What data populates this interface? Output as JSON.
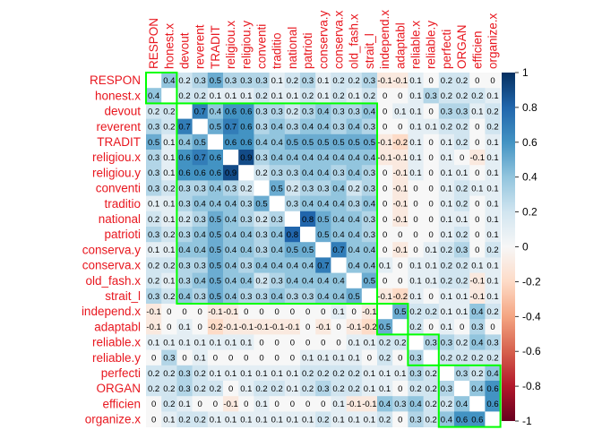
{
  "chart_data": {
    "type": "heatmap",
    "title": "",
    "variables": [
      "RESPON",
      "honest.x",
      "devout",
      "reverent",
      "TRADIT",
      "religiou.x",
      "religiou.y",
      "conventi",
      "traditio",
      "national",
      "patrioti",
      "conserva.y",
      "conserva.x",
      "old_fash.x",
      "strait_l",
      "independ.x",
      "adaptabl",
      "reliable.x",
      "reliable.y",
      "perfecti",
      "ORGAN",
      "efficien",
      "organize.x"
    ],
    "matrix": [
      [
        1,
        0.4,
        0.2,
        0.3,
        0.5,
        0.3,
        0.3,
        0.3,
        0.1,
        0.2,
        0.3,
        0.1,
        0.2,
        0.2,
        0.3,
        -0.1,
        -0.1,
        0.1,
        0,
        0.2,
        0.2,
        0,
        0
      ],
      [
        0.4,
        1,
        0.2,
        0.2,
        0.1,
        0.1,
        0.1,
        0.2,
        0.1,
        0.1,
        0.2,
        0.1,
        0.2,
        0.1,
        0.2,
        0,
        0,
        0.1,
        0.3,
        0.2,
        0.2,
        0.2,
        0.1
      ],
      [
        0.2,
        0.2,
        1,
        0.7,
        0.4,
        0.6,
        0.6,
        0.3,
        0.3,
        0.2,
        0.3,
        0.4,
        0.3,
        0.3,
        0.4,
        0,
        0.1,
        0.1,
        0,
        0.3,
        0.3,
        0.1,
        0.2
      ],
      [
        0.3,
        0.2,
        0.7,
        1,
        0.5,
        0.7,
        0.6,
        0.3,
        0.4,
        0.3,
        0.4,
        0.4,
        0.3,
        0.4,
        0.3,
        0,
        0,
        0.1,
        0.1,
        0.2,
        0.2,
        0,
        0.2
      ],
      [
        0.5,
        0.1,
        0.4,
        0.5,
        1,
        0.6,
        0.6,
        0.4,
        0.4,
        0.5,
        0.5,
        0.5,
        0.5,
        0.5,
        0.5,
        -0.1,
        -0.2,
        0.1,
        0,
        0.1,
        0.2,
        0,
        0.1
      ],
      [
        0.3,
        0.1,
        0.6,
        0.7,
        0.6,
        1,
        0.9,
        0.3,
        0.4,
        0.4,
        0.4,
        0.4,
        0.4,
        0.4,
        0.4,
        -0.1,
        -0.1,
        0.1,
        0,
        0.1,
        0,
        -0.1,
        0.1
      ],
      [
        0.3,
        0.1,
        0.6,
        0.6,
        0.6,
        0.9,
        1,
        0.2,
        0.3,
        0.3,
        0.4,
        0.4,
        0.3,
        0.4,
        0.3,
        0,
        -0.1,
        0.1,
        0,
        0.1,
        0.1,
        0,
        0.1
      ],
      [
        0.3,
        0.2,
        0.3,
        0.3,
        0.4,
        0.3,
        0.2,
        1,
        0.5,
        0.2,
        0.3,
        0.3,
        0.4,
        0.2,
        0.3,
        0,
        -0.1,
        0,
        0,
        0.1,
        0.2,
        0.1,
        0.1
      ],
      [
        0.1,
        0.1,
        0.3,
        0.4,
        0.4,
        0.4,
        0.3,
        0.5,
        1,
        0.3,
        0.4,
        0.4,
        0.4,
        0.3,
        0.4,
        0,
        -0.1,
        0,
        0,
        0.1,
        0.2,
        0,
        0.1
      ],
      [
        0.2,
        0.1,
        0.2,
        0.3,
        0.5,
        0.4,
        0.3,
        0.2,
        0.3,
        1,
        0.8,
        0.5,
        0.4,
        0.4,
        0.3,
        0,
        -0.1,
        0,
        0,
        0.1,
        0.1,
        0,
        0.1
      ],
      [
        0.3,
        0.2,
        0.3,
        0.4,
        0.5,
        0.4,
        0.4,
        0.3,
        0.4,
        0.8,
        1,
        0.5,
        0.4,
        0.4,
        0.3,
        0,
        0,
        0,
        0,
        0.1,
        0.2,
        0,
        0.1
      ],
      [
        0.1,
        0.1,
        0.4,
        0.4,
        0.5,
        0.4,
        0.4,
        0.3,
        0.4,
        0.5,
        0.5,
        1,
        0.7,
        0.4,
        0.4,
        0,
        -0.1,
        0,
        0.1,
        0.2,
        0.3,
        0,
        0.2
      ],
      [
        0.2,
        0.2,
        0.3,
        0.3,
        0.5,
        0.4,
        0.3,
        0.4,
        0.4,
        0.4,
        0.4,
        0.7,
        1,
        0.4,
        0.4,
        0.1,
        0,
        0.1,
        0.1,
        0.2,
        0.2,
        0.1,
        0.1
      ],
      [
        0.2,
        0.1,
        0.3,
        0.4,
        0.5,
        0.4,
        0.4,
        0.2,
        0.3,
        0.4,
        0.4,
        0.4,
        0.4,
        1,
        0.5,
        0,
        0,
        0.1,
        0.1,
        0.2,
        0.2,
        -0.1,
        0.1
      ],
      [
        0.3,
        0.2,
        0.4,
        0.3,
        0.5,
        0.4,
        0.3,
        0.3,
        0.4,
        0.3,
        0.3,
        0.4,
        0.4,
        0.5,
        1,
        -0.1,
        -0.2,
        0.1,
        0,
        0.1,
        0.1,
        -0.1,
        0.1
      ],
      [
        -0.1,
        0,
        0,
        0,
        -0.1,
        -0.1,
        0,
        0,
        0,
        0,
        0,
        0,
        0.1,
        0,
        -0.1,
        1,
        0.5,
        0.2,
        0.2,
        0.1,
        0.1,
        0.4,
        0.2
      ],
      [
        -0.1,
        0,
        0.1,
        0,
        -0.2,
        -0.1,
        -0.1,
        -0.1,
        -0.1,
        -0.1,
        0,
        -0.1,
        0,
        -0.1,
        -0.2,
        0.5,
        1,
        0.2,
        0,
        0.1,
        0,
        0.3,
        0
      ],
      [
        0.1,
        0.1,
        0.1,
        0.1,
        0.1,
        0.1,
        0.1,
        0,
        0,
        0,
        0,
        0,
        0,
        0.1,
        0.1,
        0.2,
        0.2,
        1,
        0.3,
        0.3,
        0.2,
        0.4,
        0.3
      ],
      [
        0,
        0.3,
        0,
        0.1,
        0,
        0,
        0,
        0,
        0,
        0,
        0.1,
        0.1,
        0.1,
        0.1,
        0,
        0.2,
        0,
        0.3,
        1,
        0.2,
        0.2,
        0.2,
        0.2
      ],
      [
        0.2,
        0.2,
        0.3,
        0.2,
        0.1,
        0.1,
        0.1,
        0.1,
        0.1,
        0.1,
        0.2,
        0.2,
        0.2,
        0.2,
        0.1,
        0.1,
        0.1,
        0.3,
        0.2,
        1,
        0.3,
        0.2,
        0.4
      ],
      [
        0.2,
        0.2,
        0.3,
        0.2,
        0.2,
        0,
        0.1,
        0.2,
        0.2,
        0.1,
        0.2,
        0.3,
        0.2,
        0.2,
        0.1,
        0.1,
        0,
        0.2,
        0.2,
        0.3,
        1,
        0.4,
        0.6
      ],
      [
        0,
        0.2,
        0.1,
        0,
        0,
        -0.1,
        0,
        0.1,
        0,
        0,
        0,
        0,
        0.1,
        -0.1,
        -0.1,
        0.4,
        0.3,
        0.4,
        0.2,
        0.2,
        0.4,
        1,
        0.6
      ],
      [
        0,
        0.1,
        0.2,
        0.2,
        0.1,
        0.1,
        0.1,
        0.1,
        0.1,
        0.1,
        0.1,
        0.2,
        0.1,
        0.1,
        0.1,
        0.2,
        0,
        0.3,
        0.2,
        0.4,
        0.6,
        0.6,
        1
      ]
    ],
    "cluster_boxes": [
      [
        0,
        1
      ],
      [
        2,
        14
      ],
      [
        15,
        16
      ],
      [
        17,
        18
      ],
      [
        19,
        22
      ]
    ],
    "legend": {
      "position": "right",
      "ticks": [
        "1",
        "0.8",
        "0.6",
        "0.4",
        "0.2",
        "0",
        "-0.2",
        "-0.4",
        "-0.6",
        "-0.8",
        "-1"
      ],
      "range": [
        -1,
        1
      ]
    },
    "colors": {
      "label": "#e8171f",
      "positive_strong": "#053061",
      "positive_mid": "#4393c3",
      "neutral": "#f7f7f7",
      "negative_mid": "#d6604d",
      "negative_strong": "#67001f",
      "box": "#00ff00"
    }
  }
}
